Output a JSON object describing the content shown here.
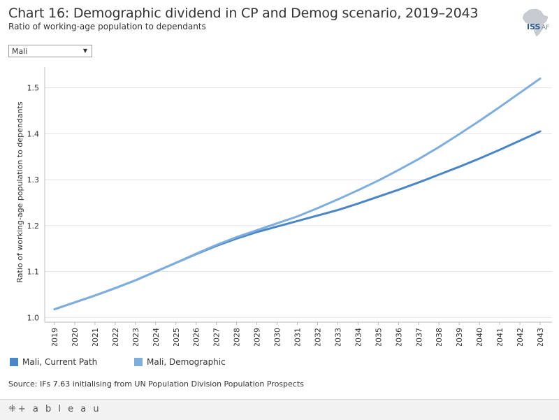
{
  "header": {
    "title": "Chart 16: Demographic dividend in CP and Demog scenario, 2019–2043",
    "subtitle": "Ratio of working-age population to dependants",
    "logo_text": "ISS",
    "logo_text2": "AF"
  },
  "filter": {
    "selected": "Mali"
  },
  "colors": {
    "current_path": "#4A86C5",
    "demographic": "#7FAEDC",
    "grid": "#e3e3e3",
    "axis": "#bbbbbb"
  },
  "chart_data": {
    "type": "line",
    "title": "Chart 16: Demographic dividend in CP and Demog scenario, 2019–2043",
    "xlabel": "",
    "ylabel": "Ratio of working-age population to dependants",
    "ylim": [
      0.99,
      1.545
    ],
    "yticks": [
      "1.0",
      "1.1",
      "1.2",
      "1.3",
      "1.4",
      "1.5"
    ],
    "x": [
      "2019",
      "2020",
      "2021",
      "2022",
      "2023",
      "2024",
      "2025",
      "2026",
      "2027",
      "2028",
      "2029",
      "2030",
      "2031",
      "2032",
      "2033",
      "2034",
      "2035",
      "2036",
      "2037",
      "2038",
      "2039",
      "2040",
      "2041",
      "2042",
      "2043"
    ],
    "series": [
      {
        "name": "Mali, Current Path",
        "values": [
          1.018,
          1.033,
          1.048,
          1.064,
          1.081,
          1.1,
          1.119,
          1.138,
          1.156,
          1.172,
          1.186,
          1.198,
          1.21,
          1.222,
          1.234,
          1.248,
          1.263,
          1.278,
          1.294,
          1.311,
          1.328,
          1.346,
          1.365,
          1.385,
          1.405
        ]
      },
      {
        "name": "Mali, Demographic",
        "values": [
          1.018,
          1.033,
          1.048,
          1.064,
          1.081,
          1.1,
          1.119,
          1.139,
          1.158,
          1.175,
          1.19,
          1.205,
          1.22,
          1.238,
          1.257,
          1.277,
          1.298,
          1.321,
          1.345,
          1.371,
          1.399,
          1.428,
          1.458,
          1.489,
          1.52
        ]
      }
    ]
  },
  "legend": {
    "items": [
      "Mali, Current Path",
      "Mali, Demographic"
    ]
  },
  "source": "Source: IFs 7.63 initialising from UN Population Division Population Prospects",
  "footer": {
    "brand": "+ a b l e a u",
    "brand_symbol": "⁜"
  }
}
